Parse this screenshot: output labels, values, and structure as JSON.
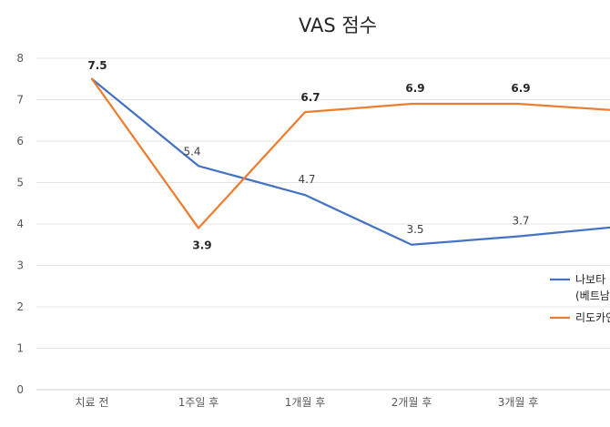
{
  "chart_data": {
    "type": "line",
    "title": "VAS 점수",
    "categories": [
      "치료 전",
      "1주일 후",
      "1개월 후",
      "2개월 후",
      "3개월 후",
      ""
    ],
    "ylim": [
      0,
      8
    ],
    "yticks": [
      0,
      1,
      2,
      3,
      4,
      5,
      6,
      7,
      8
    ],
    "grid": true,
    "legend_position": "right",
    "series": [
      {
        "name": "나보타 (베트남",
        "legend_lines": [
          "나보타",
          "(베트남"
        ],
        "color": "#4472C4",
        "values": [
          7.5,
          5.4,
          4.7,
          3.5,
          3.7,
          3.95
        ],
        "labels": [
          "",
          "5.4",
          "4.7",
          "3.5",
          "3.7",
          ""
        ]
      },
      {
        "name": "리도카인",
        "legend_lines": [
          "리도카인"
        ],
        "color": "#ED7D31",
        "values": [
          7.5,
          3.9,
          6.7,
          6.9,
          6.9,
          6.73
        ],
        "labels": [
          "7.5",
          "3.9",
          "6.7",
          "6.9",
          "6.9",
          ""
        ]
      }
    ]
  }
}
